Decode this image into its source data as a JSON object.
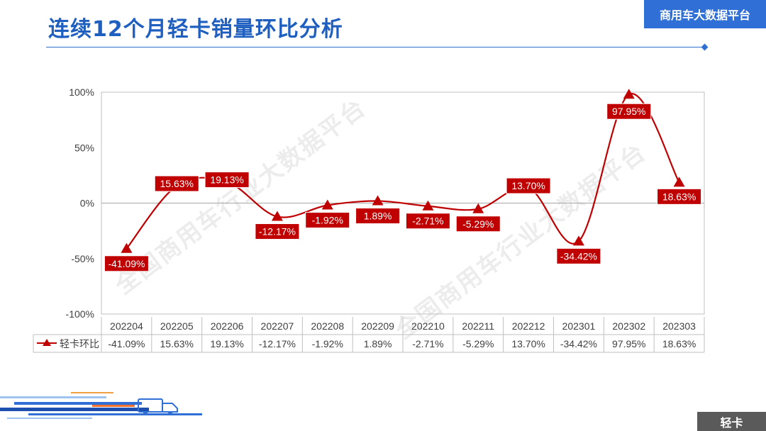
{
  "page": {
    "title": "连续12个月轻卡销量环比分析",
    "brand": "商用车大数据平台",
    "corner_label": "轻卡",
    "watermark": "全国商用车行业大数据平台"
  },
  "colors": {
    "series": "#c00000",
    "title": "#1f5fbf",
    "brand_bg": "#2f6fd6",
    "label_bg": "#c00000"
  },
  "chart_data": {
    "type": "line",
    "categories": [
      "202204",
      "202205",
      "202206",
      "202207",
      "202208",
      "202209",
      "202210",
      "202211",
      "202212",
      "202301",
      "202302",
      "202303"
    ],
    "series": [
      {
        "name": "轻卡环比",
        "values": [
          -41.09,
          15.63,
          19.13,
          -12.17,
          -1.92,
          1.89,
          -2.71,
          -5.29,
          13.7,
          -34.42,
          97.95,
          18.63
        ],
        "labels": [
          "-41.09%",
          "15.63%",
          "19.13%",
          "-12.17%",
          "-1.92%",
          "1.89%",
          "-2.71%",
          "-5.29%",
          "13.70%",
          "-34.42%",
          "97.95%",
          "18.63%"
        ]
      }
    ],
    "yticks": [
      "100%",
      "50%",
      "0%",
      "-50%",
      "-100%"
    ],
    "ytick_values": [
      100,
      50,
      0,
      -50,
      -100
    ],
    "ylim": [
      -100,
      100
    ],
    "marker": "triangle",
    "smooth": true,
    "data_table": true,
    "legend": "in data table"
  }
}
